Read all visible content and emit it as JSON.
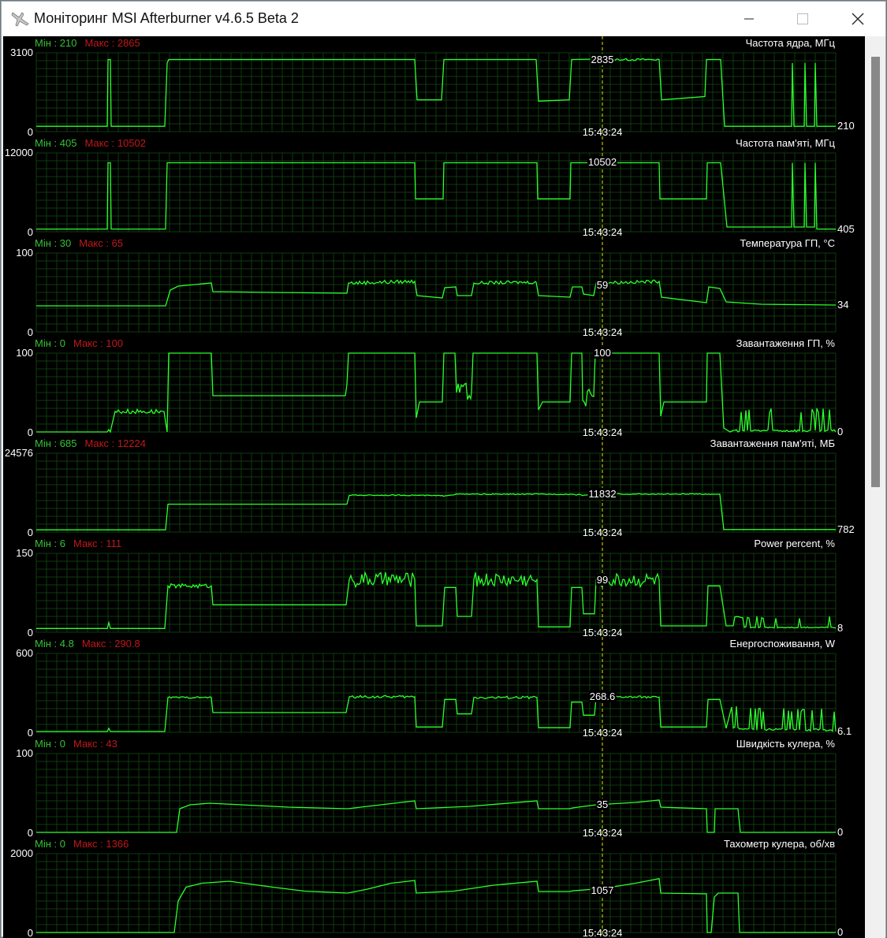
{
  "window": {
    "title": "Моніторинг MSI Afterburner v4.6.5 Beta 2",
    "buttons": [
      "minimize",
      "maximize",
      "close"
    ]
  },
  "colors": {
    "line": "#2cff2c",
    "grid": "#0d3d0d",
    "cursor": "#e6e600",
    "min": "#33c233",
    "max": "#c01818",
    "background": "#000000"
  },
  "cursor_time": "15:43:24",
  "labels": {
    "min": "Мін",
    "max": "Макс"
  },
  "graphs": [
    {
      "name": "Частота ядра, МГц",
      "min": "210",
      "max": "2865",
      "ymax": "3100",
      "ymin": "0",
      "ylim": [
        0,
        3100
      ],
      "current": "210",
      "cursor_value": "2835",
      "points": [
        [
          0,
          210
        ],
        [
          9,
          210
        ],
        [
          9.1,
          2835
        ],
        [
          9.4,
          2835
        ],
        [
          9.5,
          210
        ],
        [
          16.3,
          210
        ],
        [
          16.6,
          2700
        ],
        [
          16.8,
          2835
        ],
        [
          48,
          2835
        ],
        [
          48.3,
          1250
        ],
        [
          51.4,
          1250
        ],
        [
          51.7,
          2835
        ],
        [
          63.4,
          2835
        ],
        [
          63.7,
          1200
        ],
        [
          67.6,
          1250
        ],
        [
          67.9,
          2835
        ],
        [
          79,
          2835
        ],
        [
          79.3,
          1250
        ],
        [
          84.8,
          1380
        ],
        [
          85,
          2835
        ],
        [
          86.8,
          2835
        ],
        [
          87.3,
          210
        ],
        [
          95.8,
          210
        ],
        [
          95.9,
          2700
        ],
        [
          96.1,
          210
        ],
        [
          97.4,
          210
        ],
        [
          97.5,
          2700
        ],
        [
          97.7,
          210
        ],
        [
          98.7,
          210
        ],
        [
          98.8,
          2700
        ],
        [
          99,
          210
        ],
        [
          101.4,
          210
        ]
      ],
      "noise": [
        [
          70.8,
          79,
          40
        ]
      ]
    },
    {
      "name": "Частота пам'яті, МГц",
      "min": "405",
      "max": "10502",
      "ymax": "12000",
      "ymin": "0",
      "ylim": [
        0,
        12000
      ],
      "current": "405",
      "cursor_value": "10502",
      "points": [
        [
          0,
          405
        ],
        [
          9,
          405
        ],
        [
          9.1,
          10502
        ],
        [
          9.4,
          10502
        ],
        [
          9.5,
          405
        ],
        [
          16.4,
          405
        ],
        [
          16.6,
          10502
        ],
        [
          48,
          10502
        ],
        [
          48.1,
          5000
        ],
        [
          51.6,
          5000
        ],
        [
          51.7,
          10502
        ],
        [
          63.5,
          10502
        ],
        [
          63.6,
          5000
        ],
        [
          67.7,
          5000
        ],
        [
          67.8,
          10502
        ],
        [
          79,
          10502
        ],
        [
          79.1,
          5000
        ],
        [
          85,
          5000
        ],
        [
          85.1,
          10502
        ],
        [
          86.8,
          10502
        ],
        [
          87.6,
          720
        ],
        [
          95.8,
          720
        ],
        [
          95.9,
          10502
        ],
        [
          96.1,
          720
        ],
        [
          97.4,
          720
        ],
        [
          97.5,
          10502
        ],
        [
          97.7,
          720
        ],
        [
          98.7,
          720
        ],
        [
          98.8,
          10502
        ],
        [
          99,
          405
        ],
        [
          101.4,
          405
        ]
      ],
      "noise": []
    },
    {
      "name": "Температура ГП, °C",
      "min": "30",
      "max": "65",
      "ymax": "100",
      "ymin": "0",
      "ylim": [
        0,
        100
      ],
      "current": "34",
      "cursor_value": "59",
      "points": [
        [
          0,
          33
        ],
        [
          16.4,
          33
        ],
        [
          17,
          53
        ],
        [
          18,
          58
        ],
        [
          22.2,
          62
        ],
        [
          22.4,
          51
        ],
        [
          30,
          50
        ],
        [
          39.4,
          49
        ],
        [
          39.6,
          62
        ],
        [
          48,
          64
        ],
        [
          48.3,
          46
        ],
        [
          51.5,
          43
        ],
        [
          51.8,
          56
        ],
        [
          53.2,
          57
        ],
        [
          53.4,
          46
        ],
        [
          55.2,
          46
        ],
        [
          55.5,
          62
        ],
        [
          63.4,
          63
        ],
        [
          63.7,
          46
        ],
        [
          67.7,
          44
        ],
        [
          68,
          57
        ],
        [
          69.2,
          57
        ],
        [
          69.4,
          48
        ],
        [
          70.7,
          46
        ],
        [
          71,
          62
        ],
        [
          79,
          64
        ],
        [
          79.3,
          44
        ],
        [
          85,
          37
        ],
        [
          85.3,
          57
        ],
        [
          86.7,
          55
        ],
        [
          87.5,
          38
        ],
        [
          92,
          35
        ],
        [
          101.4,
          34
        ]
      ],
      "noise": [
        [
          39.6,
          48,
          2.5
        ],
        [
          55.5,
          63.4,
          2
        ],
        [
          71,
          79,
          2
        ]
      ]
    },
    {
      "name": "Завантаження ГП, %",
      "min": "0",
      "max": "100",
      "ymax": "100",
      "ymin": "0",
      "ylim": [
        0,
        100
      ],
      "current": "0",
      "cursor_value": "100",
      "points": [
        [
          0,
          0
        ],
        [
          9,
          0
        ],
        [
          9.2,
          3
        ],
        [
          9.4,
          0
        ],
        [
          9.5,
          5
        ],
        [
          10,
          26
        ],
        [
          16.2,
          26
        ],
        [
          16.6,
          0
        ],
        [
          16.8,
          100
        ],
        [
          22.2,
          100
        ],
        [
          22.4,
          46
        ],
        [
          39.2,
          46
        ],
        [
          39.4,
          60
        ],
        [
          39.6,
          100
        ],
        [
          48,
          100
        ],
        [
          48.2,
          18
        ],
        [
          48.6,
          38
        ],
        [
          51.5,
          38
        ],
        [
          51.7,
          100
        ],
        [
          53.1,
          100
        ],
        [
          53.3,
          50
        ],
        [
          55.2,
          50
        ],
        [
          55.4,
          100
        ],
        [
          63.5,
          100
        ],
        [
          63.7,
          28
        ],
        [
          64.2,
          38
        ],
        [
          67.7,
          38
        ],
        [
          67.9,
          100
        ],
        [
          69.2,
          100
        ],
        [
          69.3,
          40
        ],
        [
          70.7,
          45
        ],
        [
          70.9,
          100
        ],
        [
          79,
          100
        ],
        [
          79.2,
          20
        ],
        [
          79.6,
          38
        ],
        [
          85,
          38
        ],
        [
          85.1,
          100
        ],
        [
          86.7,
          100
        ],
        [
          87.2,
          5
        ],
        [
          88,
          0
        ],
        [
          101.4,
          0
        ]
      ],
      "noise": [
        [
          10,
          16.2,
          3
        ],
        [
          53.3,
          55.2,
          12
        ],
        [
          69.3,
          70.7,
          12
        ],
        [
          88,
          101.4,
          -12
        ]
      ]
    },
    {
      "name": "Завантаження пам'яті, МБ",
      "min": "685",
      "max": "12224",
      "ymax": "24576",
      "ymin": "0",
      "ylim": [
        0,
        24576
      ],
      "current": "782",
      "cursor_value": "11832",
      "points": [
        [
          0,
          685
        ],
        [
          16.4,
          685
        ],
        [
          16.7,
          8700
        ],
        [
          39.4,
          8700
        ],
        [
          39.7,
          11500
        ],
        [
          48,
          11500
        ],
        [
          51.6,
          11300
        ],
        [
          53.3,
          11800
        ],
        [
          67.8,
          11800
        ],
        [
          69.3,
          11500
        ],
        [
          70.8,
          11832
        ],
        [
          86.7,
          11832
        ],
        [
          87.2,
          782
        ],
        [
          101.4,
          782
        ]
      ],
      "noise": [
        [
          39.7,
          86,
          150
        ]
      ]
    },
    {
      "name": "Power percent, %",
      "min": "6",
      "max": "111",
      "ymax": "150",
      "ymin": "0",
      "ylim": [
        0,
        150
      ],
      "current": "8",
      "cursor_value": "99",
      "points": [
        [
          0,
          7
        ],
        [
          9,
          7
        ],
        [
          9.2,
          18
        ],
        [
          9.4,
          7
        ],
        [
          16.3,
          7
        ],
        [
          16.7,
          88
        ],
        [
          22.2,
          88
        ],
        [
          22.4,
          52
        ],
        [
          39.3,
          52
        ],
        [
          39.7,
          100
        ],
        [
          48,
          100
        ],
        [
          48.2,
          12
        ],
        [
          51.5,
          12
        ],
        [
          51.8,
          85
        ],
        [
          53.2,
          85
        ],
        [
          53.4,
          30
        ],
        [
          55.2,
          30
        ],
        [
          55.5,
          100
        ],
        [
          63.5,
          100
        ],
        [
          63.7,
          10
        ],
        [
          67.7,
          10
        ],
        [
          67.9,
          85
        ],
        [
          69.2,
          85
        ],
        [
          69.4,
          35
        ],
        [
          70.8,
          35
        ],
        [
          71,
          99
        ],
        [
          79,
          100
        ],
        [
          79.2,
          12
        ],
        [
          85,
          12
        ],
        [
          85.2,
          88
        ],
        [
          86.7,
          88
        ],
        [
          87.5,
          12
        ],
        [
          90,
          8
        ],
        [
          101.4,
          8
        ]
      ],
      "noise": [
        [
          16.7,
          22.2,
          4
        ],
        [
          39.7,
          48,
          14
        ],
        [
          55.5,
          63.5,
          14
        ],
        [
          71,
          79,
          14
        ],
        [
          88,
          101.4,
          -6
        ]
      ]
    },
    {
      "name": "Енергоспоживання, W",
      "min": "4.8",
      "max": "290.8",
      "ymax": "600",
      "ymin": "0",
      "ylim": [
        0,
        600
      ],
      "current": "6.1",
      "cursor_value": "268.6",
      "points": [
        [
          0,
          6
        ],
        [
          9,
          6
        ],
        [
          9.2,
          30
        ],
        [
          9.4,
          6
        ],
        [
          16.3,
          6
        ],
        [
          16.7,
          265
        ],
        [
          22.2,
          265
        ],
        [
          22.4,
          150
        ],
        [
          39.3,
          150
        ],
        [
          39.7,
          270
        ],
        [
          48,
          270
        ],
        [
          48.2,
          40
        ],
        [
          51.5,
          40
        ],
        [
          51.8,
          250
        ],
        [
          53.2,
          250
        ],
        [
          53.4,
          140
        ],
        [
          55.2,
          140
        ],
        [
          55.5,
          265
        ],
        [
          63.5,
          265
        ],
        [
          63.7,
          35
        ],
        [
          67.7,
          35
        ],
        [
          67.9,
          230
        ],
        [
          69.2,
          230
        ],
        [
          69.4,
          130
        ],
        [
          70.8,
          130
        ],
        [
          71,
          268.6
        ],
        [
          79,
          268
        ],
        [
          79.2,
          40
        ],
        [
          85,
          40
        ],
        [
          85.2,
          250
        ],
        [
          86.7,
          250
        ],
        [
          87.5,
          30
        ],
        [
          90,
          15
        ],
        [
          101.4,
          8
        ]
      ],
      "noise": [
        [
          16.7,
          22.2,
          6
        ],
        [
          39.7,
          48,
          10
        ],
        [
          55.5,
          63.5,
          10
        ],
        [
          71,
          79,
          8
        ],
        [
          88,
          101.4,
          -12
        ]
      ]
    },
    {
      "name": "Швидкість кулера, %",
      "min": "0",
      "max": "43",
      "ymax": "100",
      "ymin": "0",
      "ylim": [
        0,
        100
      ],
      "current": "0",
      "cursor_value": "35",
      "points": [
        [
          0,
          0
        ],
        [
          17.8,
          0
        ],
        [
          18.2,
          30
        ],
        [
          19.5,
          35
        ],
        [
          22,
          37
        ],
        [
          26,
          35
        ],
        [
          32,
          32
        ],
        [
          39.5,
          30
        ],
        [
          42,
          33
        ],
        [
          48,
          40
        ],
        [
          48.2,
          30
        ],
        [
          55,
          33
        ],
        [
          63.5,
          40
        ],
        [
          63.7,
          30
        ],
        [
          67.7,
          30
        ],
        [
          68,
          31
        ],
        [
          71,
          35
        ],
        [
          76,
          38
        ],
        [
          79,
          41
        ],
        [
          79.2,
          32
        ],
        [
          85,
          30
        ],
        [
          85.1,
          0
        ],
        [
          86,
          0
        ],
        [
          86.1,
          30
        ],
        [
          89,
          30
        ],
        [
          89.3,
          0
        ],
        [
          101.4,
          0
        ]
      ],
      "noise": []
    },
    {
      "name": "Тахометр кулера, об/хв",
      "min": "0",
      "max": "1366",
      "ymax": "2000",
      "ymin": "0",
      "ylim": [
        0,
        2000
      ],
      "current": "0",
      "cursor_value": "1057",
      "points": [
        [
          0,
          0
        ],
        [
          17.5,
          0
        ],
        [
          18,
          800
        ],
        [
          19,
          1150
        ],
        [
          21,
          1250
        ],
        [
          24.5,
          1300
        ],
        [
          30,
          1150
        ],
        [
          34,
          1050
        ],
        [
          39.5,
          1000
        ],
        [
          42,
          1100
        ],
        [
          45,
          1250
        ],
        [
          48,
          1320
        ],
        [
          48.2,
          1000
        ],
        [
          53,
          1050
        ],
        [
          58,
          1200
        ],
        [
          63.5,
          1300
        ],
        [
          63.7,
          1040
        ],
        [
          67.7,
          1040
        ],
        [
          68,
          1057
        ],
        [
          72,
          1120
        ],
        [
          76,
          1250
        ],
        [
          79,
          1366
        ],
        [
          79.2,
          1000
        ],
        [
          85,
          980
        ],
        [
          85.1,
          0
        ],
        [
          85.6,
          0
        ],
        [
          86,
          900
        ],
        [
          86.5,
          1000
        ],
        [
          89,
          1000
        ],
        [
          89.2,
          0
        ],
        [
          101.4,
          0
        ]
      ],
      "noise": []
    }
  ]
}
